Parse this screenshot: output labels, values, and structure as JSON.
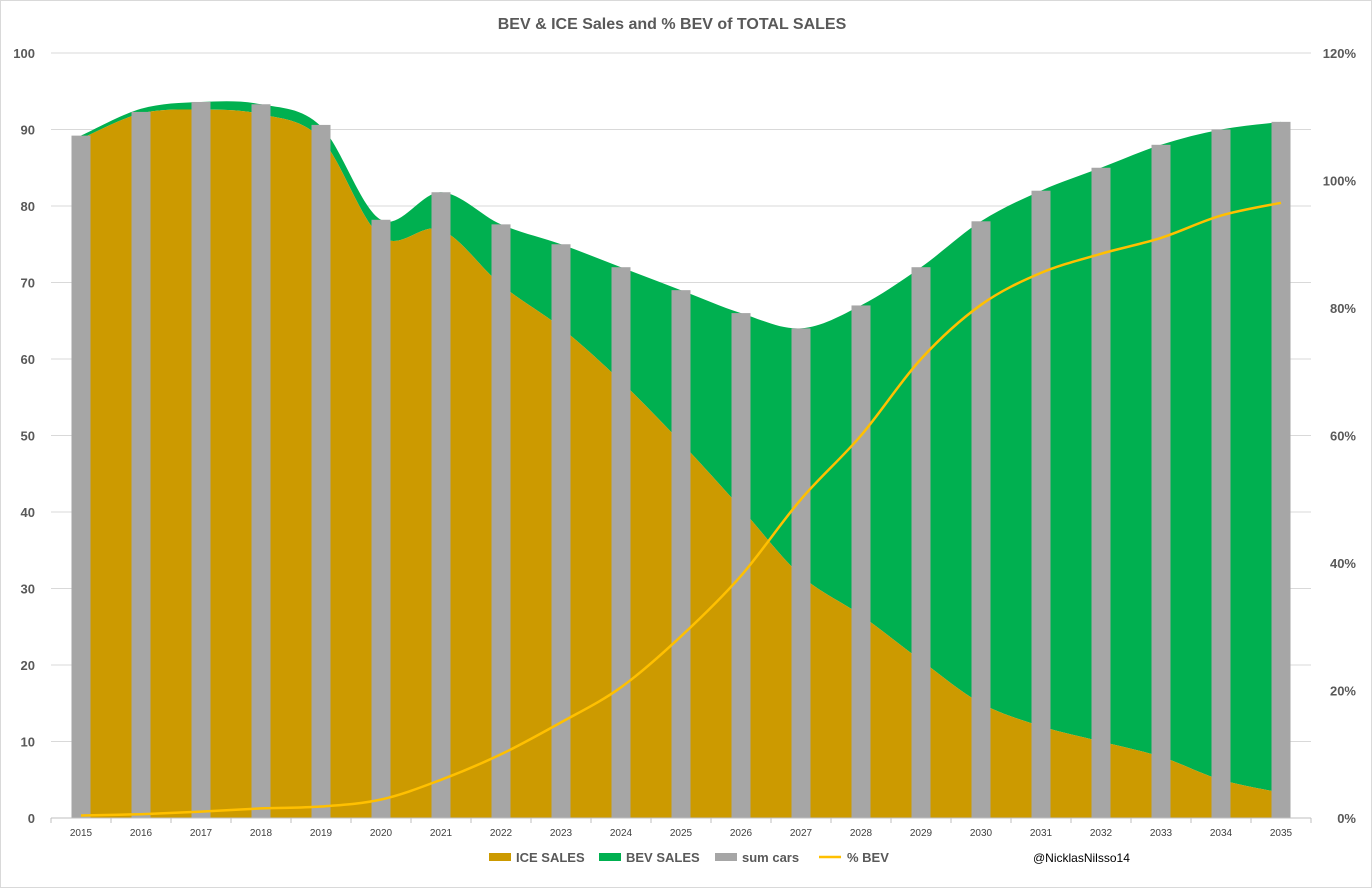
{
  "chart_data": {
    "type": "combo",
    "title": "BEV & ICE Sales and % BEV of TOTAL SALES",
    "categories": [
      "2015",
      "2016",
      "2017",
      "2018",
      "2019",
      "2020",
      "2021",
      "2022",
      "2023",
      "2024",
      "2025",
      "2026",
      "2027",
      "2028",
      "2029",
      "2030",
      "2031",
      "2032",
      "2033",
      "2034",
      "2035"
    ],
    "primary_axis": {
      "ylim": [
        0,
        100
      ],
      "ticks": [
        "0",
        "10",
        "20",
        "30",
        "40",
        "50",
        "60",
        "70",
        "80",
        "90",
        "100"
      ]
    },
    "secondary_axis": {
      "ylim": [
        0,
        1.2
      ],
      "ticks": [
        "0%",
        "20%",
        "40%",
        "60%",
        "80%",
        "100%",
        "120%"
      ]
    },
    "series": [
      {
        "name": "ICE SALES",
        "kind": "stacked-area",
        "axis": "primary",
        "color": "#cc9a00",
        "values": [
          88.8,
          92.1,
          92.6,
          92.0,
          88.8,
          76.0,
          76.9,
          69.7,
          64.1,
          57.1,
          49.1,
          40.5,
          31.7,
          26.5,
          20.6,
          15.0,
          12.0,
          10.0,
          8.0,
          5.0,
          3.3
        ]
      },
      {
        "name": "BEV SALES",
        "kind": "stacked-area",
        "axis": "primary",
        "color": "#00b050",
        "values": [
          0.4,
          0.6,
          1.0,
          1.3,
          1.6,
          2.2,
          4.9,
          7.9,
          10.9,
          14.9,
          19.9,
          25.5,
          32.3,
          40.5,
          51.4,
          63.0,
          70.0,
          75.0,
          80.0,
          85.0,
          87.7
        ]
      },
      {
        "name": "sum cars",
        "kind": "bar",
        "axis": "primary",
        "color": "#a6a6a6",
        "values": [
          89.2,
          92.3,
          93.6,
          93.3,
          90.6,
          78.2,
          81.8,
          77.6,
          75.0,
          72.0,
          69.0,
          66.0,
          64.0,
          67.0,
          72.0,
          78.0,
          82.0,
          85.0,
          88.0,
          90.0,
          91.0
        ]
      },
      {
        "name": "% BEV",
        "kind": "line",
        "axis": "secondary",
        "color": "#ffc000",
        "values": [
          0.004,
          0.006,
          0.01,
          0.015,
          0.018,
          0.029,
          0.06,
          0.1,
          0.15,
          0.205,
          0.285,
          0.38,
          0.5,
          0.6,
          0.72,
          0.805,
          0.855,
          0.885,
          0.91,
          0.945,
          0.965
        ]
      }
    ],
    "legend": {
      "position": "bottom"
    }
  },
  "credit": "@NicklasNilsso14"
}
